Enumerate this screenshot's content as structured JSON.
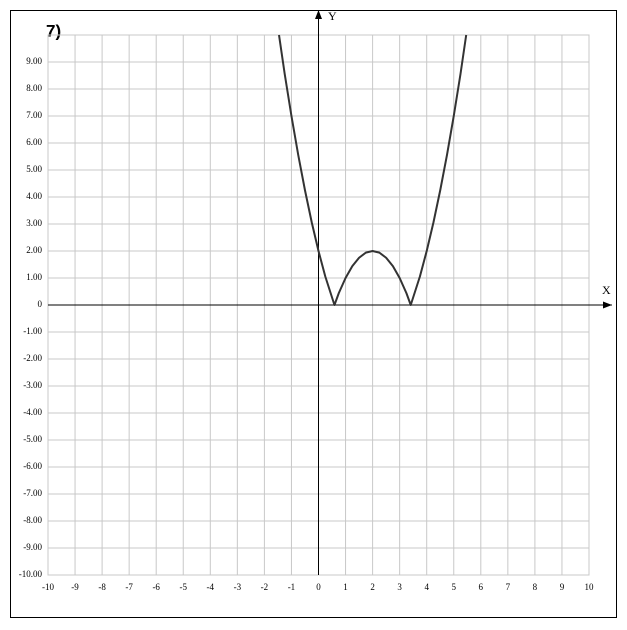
{
  "chart_data": {
    "type": "line",
    "title": "7)",
    "x_label": "X",
    "y_label": "Y",
    "x": [
      -1.46,
      -1.25,
      -1,
      -0.75,
      -0.5,
      -0.25,
      0,
      0.25,
      0.59,
      0.75,
      1,
      1.25,
      1.5,
      1.75,
      2,
      2.25,
      2.5,
      2.75,
      3,
      3.25,
      3.41,
      3.75,
      4,
      4.25,
      4.5,
      4.75,
      5,
      5.25,
      5.46
    ],
    "series": [
      {
        "color": "#333333",
        "values": [
          10,
          8.56,
          7,
          5.56,
          4.25,
          3.06,
          2,
          1.06,
          0,
          0.44,
          1,
          1.44,
          1.75,
          1.94,
          2,
          1.94,
          1.75,
          1.44,
          1,
          0.44,
          0,
          1.06,
          2,
          3.06,
          4.25,
          5.56,
          7,
          8.56,
          10
        ]
      }
    ],
    "xlim": [
      -10,
      10
    ],
    "ylim": [
      -10,
      10
    ],
    "xticks": [
      -10,
      -9,
      -8,
      -7,
      -6,
      -5,
      -4,
      -3,
      -2,
      -1,
      0,
      1,
      2,
      3,
      4,
      5,
      6,
      7,
      8,
      9,
      10
    ],
    "yticks": [
      {
        "value": -10,
        "label": "-10.00"
      },
      {
        "value": -9,
        "label": "-9.00"
      },
      {
        "value": -8,
        "label": "-8.00"
      },
      {
        "value": -7,
        "label": "-7.00"
      },
      {
        "value": -6,
        "label": "-6.00"
      },
      {
        "value": -5,
        "label": "-5.00"
      },
      {
        "value": -4,
        "label": "-4.00"
      },
      {
        "value": -3,
        "label": "-3.00"
      },
      {
        "value": -2,
        "label": "-2.00"
      },
      {
        "value": -1,
        "label": "-1.00"
      },
      0,
      {
        "value": 1,
        "label": "1.00"
      },
      {
        "value": 2,
        "label": "2.00"
      },
      {
        "value": 3,
        "label": "3.00"
      },
      {
        "value": 4,
        "label": "4.00"
      },
      {
        "value": 5,
        "label": "5.00"
      },
      {
        "value": 6,
        "label": "6.00"
      },
      {
        "value": 7,
        "label": "7.00"
      },
      {
        "value": 8,
        "label": "8.00"
      },
      {
        "value": 9,
        "label": "9.00"
      }
    ],
    "grid": true
  }
}
